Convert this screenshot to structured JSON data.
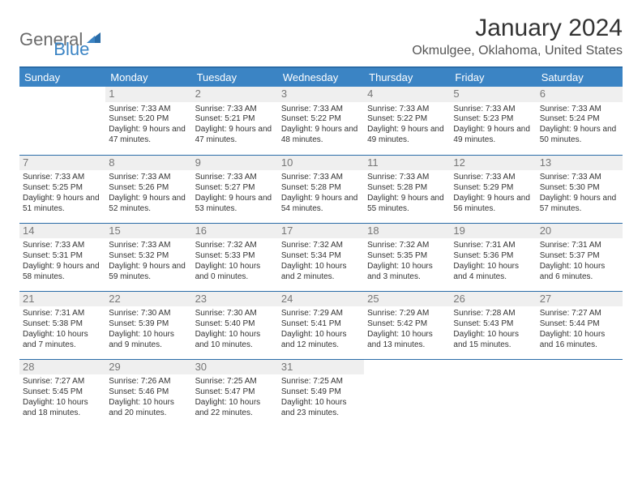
{
  "logo": {
    "word1": "General",
    "word2": "Blue"
  },
  "title": "January 2024",
  "location": "Okmulgee, Oklahoma, United States",
  "colors": {
    "header_bg": "#3b84c4",
    "header_fg": "#ffffff",
    "rule": "#2a6ca8",
    "daynum_bg": "#efefef",
    "daynum_fg": "#777777",
    "logo_gray": "#6b6b6b",
    "logo_blue": "#3b84c4"
  },
  "weekdays": [
    "Sunday",
    "Monday",
    "Tuesday",
    "Wednesday",
    "Thursday",
    "Friday",
    "Saturday"
  ],
  "weeks": [
    [
      {
        "day": "",
        "sunrise": "",
        "sunset": "",
        "daylight": ""
      },
      {
        "day": "1",
        "sunrise": "7:33 AM",
        "sunset": "5:20 PM",
        "daylight": "9 hours and 47 minutes."
      },
      {
        "day": "2",
        "sunrise": "7:33 AM",
        "sunset": "5:21 PM",
        "daylight": "9 hours and 47 minutes."
      },
      {
        "day": "3",
        "sunrise": "7:33 AM",
        "sunset": "5:22 PM",
        "daylight": "9 hours and 48 minutes."
      },
      {
        "day": "4",
        "sunrise": "7:33 AM",
        "sunset": "5:22 PM",
        "daylight": "9 hours and 49 minutes."
      },
      {
        "day": "5",
        "sunrise": "7:33 AM",
        "sunset": "5:23 PM",
        "daylight": "9 hours and 49 minutes."
      },
      {
        "day": "6",
        "sunrise": "7:33 AM",
        "sunset": "5:24 PM",
        "daylight": "9 hours and 50 minutes."
      }
    ],
    [
      {
        "day": "7",
        "sunrise": "7:33 AM",
        "sunset": "5:25 PM",
        "daylight": "9 hours and 51 minutes."
      },
      {
        "day": "8",
        "sunrise": "7:33 AM",
        "sunset": "5:26 PM",
        "daylight": "9 hours and 52 minutes."
      },
      {
        "day": "9",
        "sunrise": "7:33 AM",
        "sunset": "5:27 PM",
        "daylight": "9 hours and 53 minutes."
      },
      {
        "day": "10",
        "sunrise": "7:33 AM",
        "sunset": "5:28 PM",
        "daylight": "9 hours and 54 minutes."
      },
      {
        "day": "11",
        "sunrise": "7:33 AM",
        "sunset": "5:28 PM",
        "daylight": "9 hours and 55 minutes."
      },
      {
        "day": "12",
        "sunrise": "7:33 AM",
        "sunset": "5:29 PM",
        "daylight": "9 hours and 56 minutes."
      },
      {
        "day": "13",
        "sunrise": "7:33 AM",
        "sunset": "5:30 PM",
        "daylight": "9 hours and 57 minutes."
      }
    ],
    [
      {
        "day": "14",
        "sunrise": "7:33 AM",
        "sunset": "5:31 PM",
        "daylight": "9 hours and 58 minutes."
      },
      {
        "day": "15",
        "sunrise": "7:33 AM",
        "sunset": "5:32 PM",
        "daylight": "9 hours and 59 minutes."
      },
      {
        "day": "16",
        "sunrise": "7:32 AM",
        "sunset": "5:33 PM",
        "daylight": "10 hours and 0 minutes."
      },
      {
        "day": "17",
        "sunrise": "7:32 AM",
        "sunset": "5:34 PM",
        "daylight": "10 hours and 2 minutes."
      },
      {
        "day": "18",
        "sunrise": "7:32 AM",
        "sunset": "5:35 PM",
        "daylight": "10 hours and 3 minutes."
      },
      {
        "day": "19",
        "sunrise": "7:31 AM",
        "sunset": "5:36 PM",
        "daylight": "10 hours and 4 minutes."
      },
      {
        "day": "20",
        "sunrise": "7:31 AM",
        "sunset": "5:37 PM",
        "daylight": "10 hours and 6 minutes."
      }
    ],
    [
      {
        "day": "21",
        "sunrise": "7:31 AM",
        "sunset": "5:38 PM",
        "daylight": "10 hours and 7 minutes."
      },
      {
        "day": "22",
        "sunrise": "7:30 AM",
        "sunset": "5:39 PM",
        "daylight": "10 hours and 9 minutes."
      },
      {
        "day": "23",
        "sunrise": "7:30 AM",
        "sunset": "5:40 PM",
        "daylight": "10 hours and 10 minutes."
      },
      {
        "day": "24",
        "sunrise": "7:29 AM",
        "sunset": "5:41 PM",
        "daylight": "10 hours and 12 minutes."
      },
      {
        "day": "25",
        "sunrise": "7:29 AM",
        "sunset": "5:42 PM",
        "daylight": "10 hours and 13 minutes."
      },
      {
        "day": "26",
        "sunrise": "7:28 AM",
        "sunset": "5:43 PM",
        "daylight": "10 hours and 15 minutes."
      },
      {
        "day": "27",
        "sunrise": "7:27 AM",
        "sunset": "5:44 PM",
        "daylight": "10 hours and 16 minutes."
      }
    ],
    [
      {
        "day": "28",
        "sunrise": "7:27 AM",
        "sunset": "5:45 PM",
        "daylight": "10 hours and 18 minutes."
      },
      {
        "day": "29",
        "sunrise": "7:26 AM",
        "sunset": "5:46 PM",
        "daylight": "10 hours and 20 minutes."
      },
      {
        "day": "30",
        "sunrise": "7:25 AM",
        "sunset": "5:47 PM",
        "daylight": "10 hours and 22 minutes."
      },
      {
        "day": "31",
        "sunrise": "7:25 AM",
        "sunset": "5:49 PM",
        "daylight": "10 hours and 23 minutes."
      },
      {
        "day": "",
        "sunrise": "",
        "sunset": "",
        "daylight": ""
      },
      {
        "day": "",
        "sunrise": "",
        "sunset": "",
        "daylight": ""
      },
      {
        "day": "",
        "sunrise": "",
        "sunset": "",
        "daylight": ""
      }
    ]
  ]
}
